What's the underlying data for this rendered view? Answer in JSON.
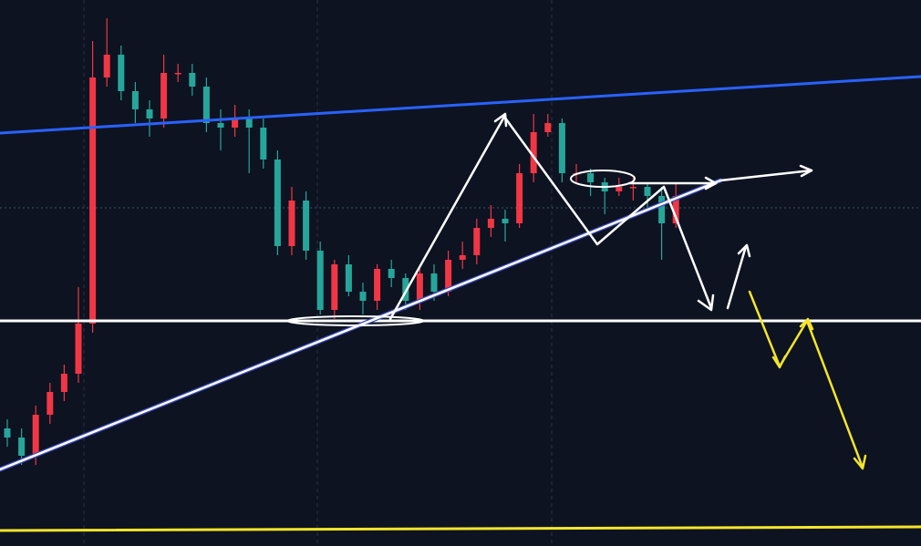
{
  "chart_data": {
    "type": "candlestick",
    "up_color": "#f23645",
    "down_color": "#26a69a",
    "open": [
      129,
      119,
      99,
      144,
      169,
      189,
      244,
      514,
      539,
      499,
      479,
      469,
      519,
      519,
      504,
      464,
      459,
      469,
      459,
      424,
      329,
      379,
      324,
      259,
      309,
      279,
      269,
      304,
      294,
      269,
      299,
      279,
      314,
      319,
      349,
      359,
      354,
      409,
      454,
      464,
      409,
      409,
      399,
      389,
      394,
      394,
      384,
      354
    ],
    "high": [
      139,
      129,
      154,
      179,
      199,
      284,
      554,
      579,
      549,
      509,
      489,
      539,
      529,
      529,
      514,
      479,
      484,
      479,
      469,
      434,
      394,
      389,
      334,
      314,
      319,
      289,
      309,
      314,
      299,
      304,
      309,
      324,
      334,
      359,
      374,
      369,
      419,
      474,
      474,
      469,
      419,
      414,
      404,
      404,
      404,
      399,
      394,
      399
    ],
    "low": [
      109,
      89,
      89,
      134,
      159,
      179,
      234,
      504,
      489,
      464,
      449,
      459,
      509,
      494,
      454,
      434,
      449,
      409,
      414,
      319,
      319,
      314,
      254,
      249,
      274,
      254,
      259,
      284,
      259,
      259,
      269,
      274,
      304,
      309,
      339,
      334,
      349,
      399,
      449,
      399,
      399,
      384,
      364,
      384,
      379,
      369,
      314,
      349
    ],
    "close": [
      119,
      99,
      144,
      169,
      189,
      244,
      514,
      539,
      499,
      479,
      469,
      519,
      519,
      504,
      464,
      459,
      469,
      459,
      424,
      329,
      379,
      324,
      259,
      309,
      279,
      269,
      304,
      294,
      269,
      299,
      279,
      314,
      319,
      349,
      359,
      354,
      409,
      454,
      464,
      409,
      409,
      399,
      389,
      394,
      394,
      384,
      354,
      384
    ]
  }
}
